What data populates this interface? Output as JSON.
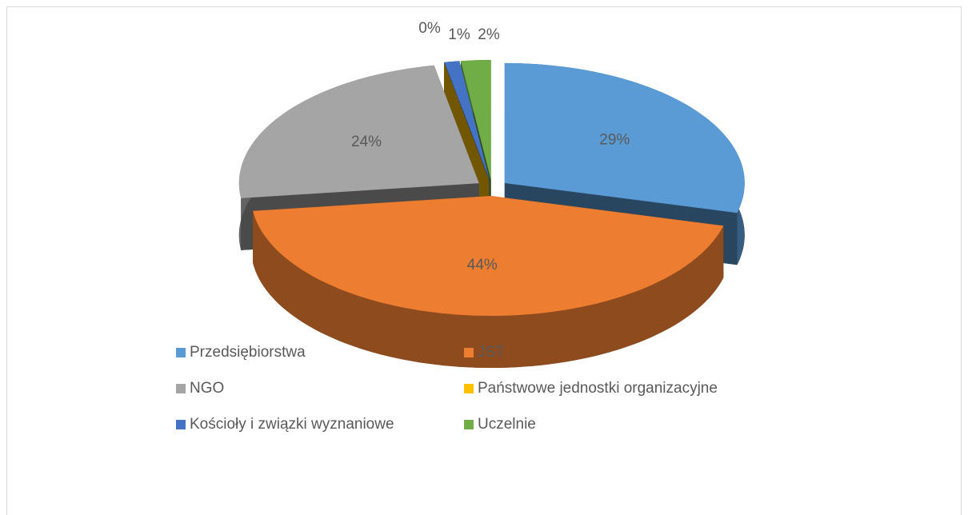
{
  "chart_data": {
    "type": "pie",
    "categories": [
      "Przedsiębiorstwa",
      "JST",
      "NGO",
      "Państwowe jednostki organizacyjne",
      "Kościoły i związki wyznaniowe",
      "Uczelnie"
    ],
    "values": [
      29,
      44,
      24,
      0,
      1,
      2
    ],
    "value_labels": [
      "29%",
      "44%",
      "24%",
      "0%",
      "1%",
      "2%"
    ],
    "colors": [
      "#5b9bd5",
      "#ed7d31",
      "#a5a5a5",
      "#ffc000",
      "#4472c4",
      "#70ad47"
    ],
    "legend": "bottom"
  }
}
